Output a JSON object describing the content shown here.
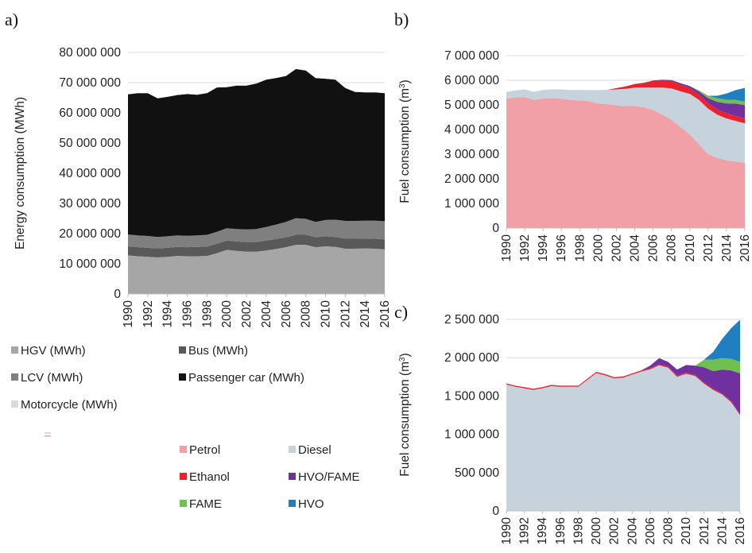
{
  "chart_data": [
    {
      "panel": "a)",
      "type": "area",
      "stacked": true,
      "ylabel": "Energy consumption (MWh)",
      "ylim": [
        0,
        80000000
      ],
      "yticks": [
        0,
        10000000,
        20000000,
        30000000,
        40000000,
        50000000,
        60000000,
        70000000,
        80000000
      ],
      "ytick_labels": [
        "0",
        "10 000 000",
        "20 000 000",
        "30 000 000",
        "40 000 000",
        "50 000 000",
        "60 000 000",
        "70 000 000",
        "80 000 000"
      ],
      "x": [
        1990,
        1991,
        1992,
        1993,
        1994,
        1995,
        1996,
        1997,
        1998,
        1999,
        2000,
        2001,
        2002,
        2003,
        2004,
        2005,
        2006,
        2007,
        2008,
        2009,
        2010,
        2011,
        2012,
        2013,
        2014,
        2015,
        2016
      ],
      "xtick_labels": [
        "1990",
        "1992",
        "1994",
        "1996",
        "1998",
        "2000",
        "2002",
        "2004",
        "2006",
        "2008",
        "2010",
        "2012",
        "2014",
        "2016"
      ],
      "series": [
        {
          "name": "HGV (MWh)",
          "color": "#a6a6a6",
          "values": [
            12800000,
            12500000,
            12300000,
            12100000,
            12300000,
            12600000,
            12500000,
            12500000,
            12600000,
            13500000,
            14600000,
            14300000,
            14000000,
            14000000,
            14400000,
            14900000,
            15500000,
            16300000,
            16300000,
            15500000,
            15800000,
            15600000,
            15000000,
            15000000,
            15100000,
            15000000,
            14800000
          ]
        },
        {
          "name": "Bus (MWh)",
          "color": "#595959",
          "values": [
            3000000,
            3000000,
            3000000,
            3000000,
            3000000,
            3000000,
            3000000,
            3100000,
            3100000,
            3100000,
            3100000,
            3100000,
            3200000,
            3200000,
            3300000,
            3300000,
            3300000,
            3300000,
            3300000,
            3300000,
            3300000,
            3300000,
            3300000,
            3300000,
            3300000,
            3300000,
            3300000
          ]
        },
        {
          "name": "LCV (MWh)",
          "color": "#7f7f7f",
          "values": [
            3900000,
            3900000,
            3900000,
            3800000,
            3800000,
            3800000,
            3800000,
            3800000,
            3900000,
            4000000,
            4100000,
            4100000,
            4200000,
            4300000,
            4500000,
            4800000,
            5100000,
            5500000,
            5300000,
            5100000,
            5400000,
            5700000,
            5900000,
            5900000,
            5900000,
            6000000,
            6000000
          ]
        },
        {
          "name": "Passenger car (MWh)",
          "color": "#111111",
          "values": [
            46400000,
            47100000,
            47300000,
            45900000,
            46200000,
            46500000,
            46900000,
            46600000,
            46900000,
            47800000,
            46700000,
            47500000,
            47600000,
            48200000,
            48800000,
            48500000,
            48300000,
            49400000,
            49100000,
            47600000,
            46800000,
            46400000,
            44000000,
            42700000,
            42500000,
            42500000,
            42400000
          ]
        },
        {
          "name": "Motorcycle (MWh)",
          "color": "#d9d9d9",
          "values": [
            100000,
            100000,
            100000,
            100000,
            100000,
            100000,
            100000,
            100000,
            100000,
            100000,
            100000,
            100000,
            100000,
            100000,
            100000,
            100000,
            100000,
            100000,
            100000,
            100000,
            100000,
            100000,
            100000,
            100000,
            100000,
            100000,
            100000
          ]
        }
      ]
    },
    {
      "panel": "b)",
      "type": "area",
      "stacked": true,
      "ylabel": "Fuel consumption (m",
      "ylabel_sup": "3",
      "ylabel_end": ")",
      "ylim": [
        0,
        7000000
      ],
      "yticks": [
        0,
        1000000,
        2000000,
        3000000,
        4000000,
        5000000,
        6000000,
        7000000
      ],
      "ytick_labels": [
        "0",
        "1 000 000",
        "2 000 000",
        "3 000 000",
        "4 000 000",
        "5 000 000",
        "6 000 000",
        "7 000 000"
      ],
      "x": [
        1990,
        1991,
        1992,
        1993,
        1994,
        1995,
        1996,
        1997,
        1998,
        1999,
        2000,
        2001,
        2002,
        2003,
        2004,
        2005,
        2006,
        2007,
        2008,
        2009,
        2010,
        2011,
        2012,
        2013,
        2014,
        2015,
        2016
      ],
      "xtick_labels": [
        "1990",
        "1992",
        "1994",
        "1996",
        "1998",
        "2000",
        "2002",
        "2004",
        "2006",
        "2008",
        "2010",
        "2012",
        "2014",
        "2016"
      ],
      "series": [
        {
          "name": "Petrol",
          "color": "#f0a0a6",
          "values": [
            5250000,
            5300000,
            5320000,
            5200000,
            5260000,
            5270000,
            5250000,
            5200000,
            5180000,
            5150000,
            5050000,
            5030000,
            4980000,
            4950000,
            4950000,
            4900000,
            4800000,
            4600000,
            4400000,
            4100000,
            3800000,
            3400000,
            3000000,
            2850000,
            2750000,
            2700000,
            2650000
          ]
        },
        {
          "name": "Diesel",
          "color": "#c6d2dc",
          "values": [
            270000,
            290000,
            310000,
            330000,
            350000,
            360000,
            380000,
            400000,
            430000,
            450000,
            550000,
            580000,
            650000,
            700000,
            750000,
            800000,
            900000,
            1100000,
            1270000,
            1450000,
            1650000,
            1800000,
            1850000,
            1750000,
            1700000,
            1650000,
            1600000
          ]
        },
        {
          "name": "Ethanol",
          "color": "#e8222f",
          "values": [
            0,
            0,
            0,
            0,
            0,
            0,
            0,
            0,
            0,
            0,
            0,
            0,
            50000,
            100000,
            150000,
            200000,
            280000,
            300000,
            300000,
            270000,
            230000,
            220000,
            220000,
            220000,
            210000,
            200000,
            190000
          ]
        },
        {
          "name": "HVO/FAME",
          "color": "#7030a0",
          "values": [
            0,
            0,
            0,
            0,
            0,
            0,
            0,
            0,
            0,
            0,
            0,
            0,
            0,
            0,
            0,
            0,
            10000,
            20000,
            40000,
            60000,
            80000,
            120000,
            200000,
            300000,
            400000,
            500000,
            550000
          ]
        },
        {
          "name": "FAME",
          "color": "#70c050",
          "values": [
            0,
            0,
            0,
            0,
            0,
            0,
            0,
            0,
            0,
            0,
            0,
            0,
            0,
            0,
            0,
            0,
            0,
            0,
            0,
            0,
            0,
            50000,
            100000,
            150000,
            150000,
            150000,
            150000
          ]
        },
        {
          "name": "HVO",
          "color": "#1f7fc0",
          "values": [
            0,
            0,
            0,
            0,
            0,
            0,
            0,
            0,
            0,
            0,
            0,
            0,
            0,
            0,
            0,
            0,
            0,
            0,
            0,
            0,
            0,
            0,
            0,
            100000,
            250000,
            400000,
            550000
          ]
        }
      ]
    },
    {
      "panel": "c)",
      "type": "area",
      "stacked": true,
      "ylabel": "Fuel consumption (m",
      "ylabel_sup": "3",
      "ylabel_end": ")",
      "ylim": [
        0,
        2500000
      ],
      "yticks": [
        0,
        500000,
        1000000,
        1500000,
        2000000,
        2500000
      ],
      "ytick_labels": [
        "0",
        "500 000",
        "1 000 000",
        "1 500 000",
        "2 000 000",
        "2 500 000"
      ],
      "x": [
        1990,
        1991,
        1992,
        1993,
        1994,
        1995,
        1996,
        1997,
        1998,
        1999,
        2000,
        2001,
        2002,
        2003,
        2004,
        2005,
        2006,
        2007,
        2008,
        2009,
        2010,
        2011,
        2012,
        2013,
        2014,
        2015,
        2016
      ],
      "xtick_labels": [
        "1990",
        "1992",
        "1994",
        "1996",
        "1998",
        "2000",
        "2002",
        "2004",
        "2006",
        "2008",
        "2010",
        "2012",
        "2014",
        "2016"
      ],
      "series": [
        {
          "name": "Petrol",
          "color": "#f0a0a6",
          "values": [
            0,
            0,
            0,
            0,
            0,
            0,
            0,
            0,
            0,
            0,
            0,
            0,
            0,
            0,
            0,
            0,
            0,
            0,
            0,
            0,
            0,
            0,
            0,
            0,
            0,
            0,
            0
          ]
        },
        {
          "name": "Diesel",
          "color": "#c6d2dc",
          "values": [
            1650000,
            1620000,
            1600000,
            1580000,
            1600000,
            1630000,
            1620000,
            1620000,
            1620000,
            1710000,
            1800000,
            1770000,
            1730000,
            1740000,
            1780000,
            1820000,
            1850000,
            1900000,
            1870000,
            1750000,
            1790000,
            1760000,
            1660000,
            1580000,
            1520000,
            1420000,
            1250000
          ]
        },
        {
          "name": "Ethanol",
          "color": "#e8222f",
          "values": [
            15000,
            15000,
            15000,
            15000,
            15000,
            15000,
            15000,
            15000,
            15000,
            15000,
            15000,
            15000,
            15000,
            15000,
            15000,
            15000,
            15000,
            15000,
            15000,
            15000,
            15000,
            15000,
            15000,
            15000,
            15000,
            15000,
            15000
          ]
        },
        {
          "name": "HVO/FAME",
          "color": "#7030a0",
          "values": [
            0,
            0,
            0,
            0,
            0,
            0,
            0,
            0,
            0,
            0,
            0,
            0,
            0,
            0,
            0,
            0,
            30000,
            80000,
            60000,
            80000,
            100000,
            120000,
            200000,
            230000,
            310000,
            400000,
            530000
          ]
        },
        {
          "name": "FAME",
          "color": "#70c050",
          "values": [
            0,
            0,
            0,
            0,
            0,
            0,
            0,
            0,
            0,
            0,
            0,
            0,
            0,
            0,
            0,
            0,
            0,
            0,
            0,
            0,
            0,
            0,
            100000,
            150000,
            150000,
            150000,
            150000
          ]
        },
        {
          "name": "HVO",
          "color": "#1f7fc0",
          "values": [
            0,
            0,
            0,
            0,
            0,
            0,
            0,
            0,
            0,
            0,
            0,
            0,
            0,
            0,
            0,
            0,
            0,
            0,
            0,
            0,
            0,
            0,
            0,
            100000,
            250000,
            400000,
            550000
          ]
        }
      ]
    }
  ],
  "legend_a": {
    "items": [
      {
        "label": "HGV (MWh)",
        "color": "#a6a6a6"
      },
      {
        "label": "Bus (MWh)",
        "color": "#595959"
      },
      {
        "label": "LCV (MWh)",
        "color": "#7f7f7f"
      },
      {
        "label": "Passenger car (MWh)",
        "color": "#111111"
      },
      {
        "label": "Motorcycle (MWh)",
        "color": "#d9d9d9"
      }
    ]
  },
  "legend_bc": {
    "items": [
      {
        "label": "Petrol",
        "color": "#f0a0a6"
      },
      {
        "label": "Diesel",
        "color": "#c6d2dc"
      },
      {
        "label": "Ethanol",
        "color": "#e8222f"
      },
      {
        "label": "HVO/FAME",
        "color": "#7030a0"
      },
      {
        "label": "FAME",
        "color": "#70c050"
      },
      {
        "label": "HVO",
        "color": "#1f7fc0"
      }
    ]
  },
  "colors": {
    "gridline": "#d9d9d9",
    "axis": "#bfbfbf"
  }
}
